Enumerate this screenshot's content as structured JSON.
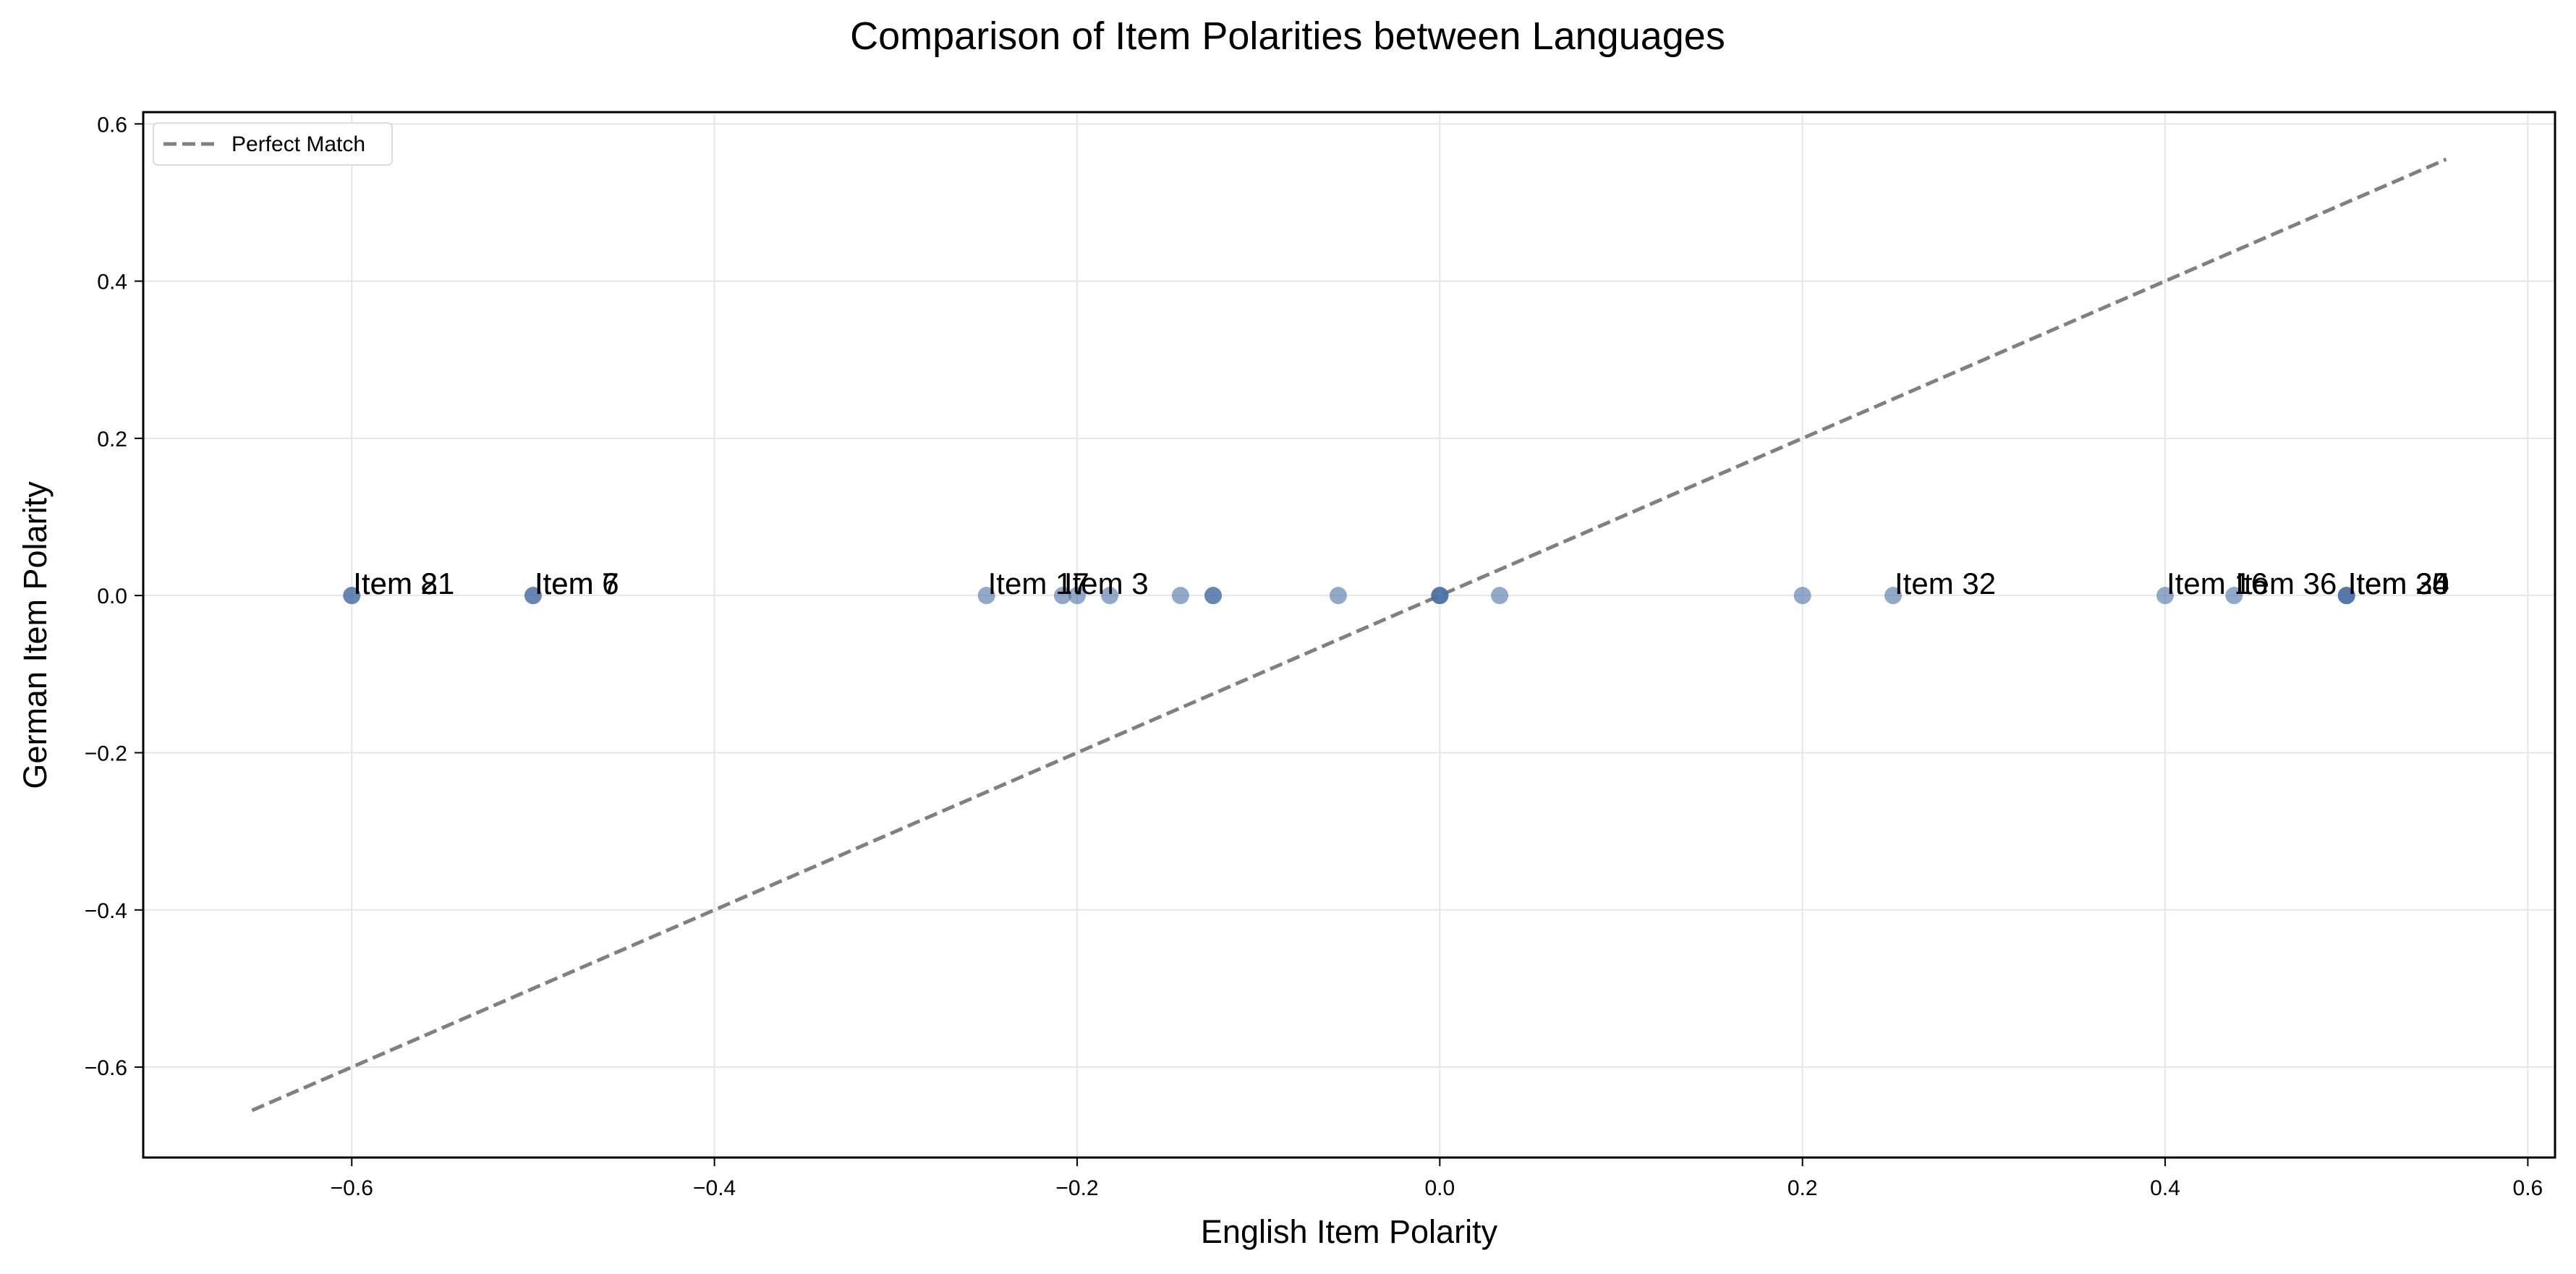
{
  "chart_data": {
    "type": "scatter",
    "title": "Comparison of Item Polarities between Languages",
    "xlabel": "English Item Polarity",
    "ylabel": "German Item Polarity",
    "xlim": [
      -0.715,
      0.615
    ],
    "ylim": [
      -0.715,
      0.615
    ],
    "xticks": [
      -0.6,
      -0.4,
      -0.2,
      0.0,
      0.2,
      0.4,
      0.6
    ],
    "yticks": [
      -0.6,
      -0.4,
      -0.2,
      0.0,
      0.2,
      0.4,
      0.6
    ],
    "xtick_labels": [
      "−0.6",
      "−0.4",
      "−0.2",
      "0.0",
      "0.2",
      "0.4",
      "0.6"
    ],
    "ytick_labels": [
      "−0.6",
      "−0.4",
      "−0.2",
      "0.0",
      "0.2",
      "0.4",
      "0.6"
    ],
    "grid": true,
    "legend": {
      "position": "top-left",
      "entries": [
        {
          "label": "Perfect Match",
          "style": "dashed",
          "color": "#808080"
        }
      ]
    },
    "reference_line": {
      "name": "Perfect Match",
      "from": [
        -0.655,
        -0.655
      ],
      "to": [
        0.555,
        0.555
      ],
      "color": "#808080",
      "style": "dashed"
    },
    "marker_color": "#4a6fa5",
    "points": [
      {
        "x": -0.6,
        "y": 0.0
      },
      {
        "x": -0.6,
        "y": 0.0
      },
      {
        "x": -0.5,
        "y": 0.0
      },
      {
        "x": -0.5,
        "y": 0.0
      },
      {
        "x": -0.25,
        "y": 0.0
      },
      {
        "x": -0.208,
        "y": 0.0
      },
      {
        "x": -0.2,
        "y": 0.0
      },
      {
        "x": -0.182,
        "y": 0.0
      },
      {
        "x": -0.143,
        "y": 0.0
      },
      {
        "x": -0.125,
        "y": 0.0
      },
      {
        "x": -0.125,
        "y": 0.0
      },
      {
        "x": -0.056,
        "y": 0.0
      },
      {
        "x": 0.0,
        "y": 0.0
      },
      {
        "x": 0.0,
        "y": 0.0
      },
      {
        "x": 0.0,
        "y": 0.0
      },
      {
        "x": 0.033,
        "y": 0.0
      },
      {
        "x": 0.2,
        "y": 0.0
      },
      {
        "x": 0.25,
        "y": 0.0
      },
      {
        "x": 0.4,
        "y": 0.0
      },
      {
        "x": 0.438,
        "y": 0.0
      },
      {
        "x": 0.5,
        "y": 0.0
      },
      {
        "x": 0.5,
        "y": 0.0
      },
      {
        "x": 0.5,
        "y": 0.0
      }
    ],
    "annotations": [
      {
        "text": "Item 8",
        "x": -0.6,
        "y": 0.0
      },
      {
        "text": "Item 21",
        "x": -0.6,
        "y": 0.0
      },
      {
        "text": "Item 6",
        "x": -0.5,
        "y": 0.0
      },
      {
        "text": "Item 7",
        "x": -0.5,
        "y": 0.0
      },
      {
        "text": "Item 17",
        "x": -0.25,
        "y": 0.0
      },
      {
        "text": "Item 3",
        "x": -0.208,
        "y": 0.0
      },
      {
        "text": "Item 32",
        "x": 0.25,
        "y": 0.0
      },
      {
        "text": "Item 16",
        "x": 0.4,
        "y": 0.0
      },
      {
        "text": "Item 36",
        "x": 0.438,
        "y": 0.0
      },
      {
        "text": "Item 20",
        "x": 0.5,
        "y": 0.0
      },
      {
        "text": "Item 34",
        "x": 0.5,
        "y": 0.0
      },
      {
        "text": "Item 35",
        "x": 0.5,
        "y": 0.0
      }
    ]
  }
}
